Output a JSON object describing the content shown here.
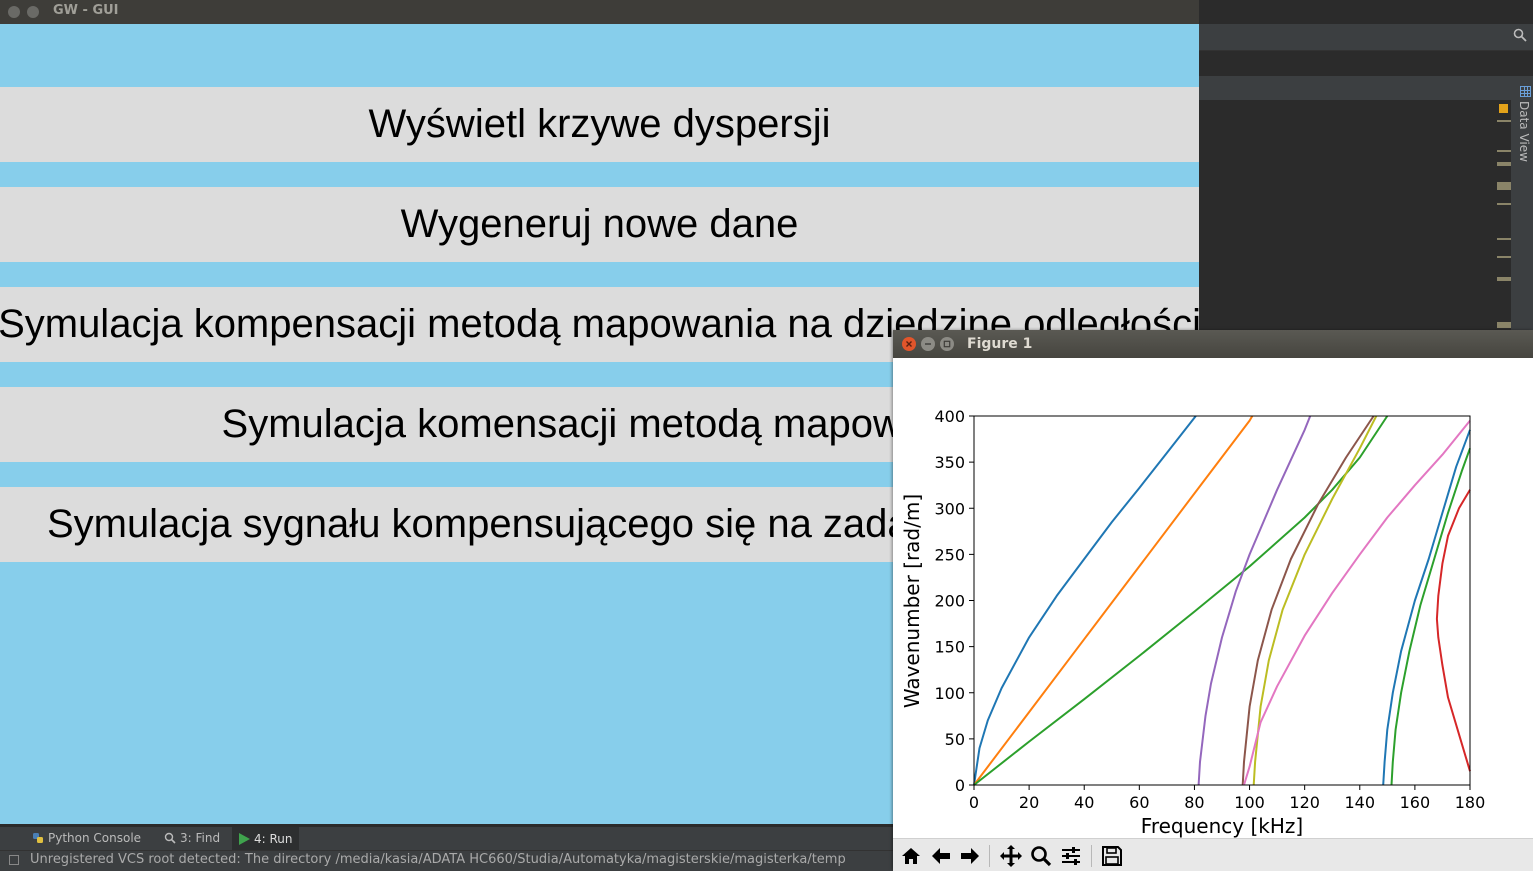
{
  "gw_window": {
    "title": "GW - GUI",
    "buttons": [
      {
        "label": "Wyświetl krzywe dyspersji"
      },
      {
        "label": "Wygeneruj nowe dane"
      },
      {
        "label": "Symulacja kompensacji metodą mapowania na dziedzinę odległości"
      },
      {
        "label": "Symulacja komensacji metodą mapowania"
      },
      {
        "label": "Symulacja sygnału kompensującego się na zadanej odległości"
      }
    ],
    "colors": {
      "background": "#87ceeb",
      "button": "#dcdcdc"
    }
  },
  "ide": {
    "right_panel_label": "Data View",
    "tool_tabs": [
      {
        "label": "Python Console",
        "icon": "python-icon"
      },
      {
        "label": "3: Find",
        "icon": "search-icon"
      },
      {
        "label": "4: Run",
        "icon": "run-icon"
      }
    ],
    "status_text": "Unregistered VCS root detected: The directory /media/kasia/ADATA HC660/Studia/Automatyka/magisterskie/magisterka/temp"
  },
  "figure_window": {
    "title": "Figure 1",
    "toolbar": [
      "home-icon",
      "back-icon",
      "forward-icon",
      "pan-icon",
      "zoom-icon",
      "configure-icon",
      "save-icon"
    ]
  },
  "chart_data": {
    "type": "line",
    "title": "",
    "xlabel": "Frequency [kHz]",
    "ylabel": "Wavenumber [rad/m]",
    "xlim": [
      0,
      180
    ],
    "ylim": [
      0,
      400
    ],
    "xticks": [
      0,
      20,
      40,
      60,
      80,
      100,
      120,
      140,
      160,
      180
    ],
    "yticks": [
      0,
      50,
      100,
      150,
      200,
      250,
      300,
      350,
      400
    ],
    "grid": false,
    "series": [
      {
        "color": "#1f77b4",
        "x": [
          0,
          2,
          5,
          10,
          20,
          30,
          40,
          50,
          60,
          70,
          80.5
        ],
        "y": [
          0,
          40,
          70,
          105,
          160,
          205,
          245,
          285,
          322,
          360,
          400
        ]
      },
      {
        "color": "#ff7f0e",
        "x": [
          0,
          20,
          40,
          60,
          80,
          100,
          101
        ],
        "y": [
          0,
          79,
          158,
          237,
          316,
          395,
          400
        ]
      },
      {
        "color": "#2ca02c",
        "x": [
          0,
          20,
          40,
          60,
          80,
          100,
          120,
          130,
          140,
          150
        ],
        "y": [
          0,
          47,
          93,
          140,
          188,
          237,
          290,
          320,
          355,
          400
        ]
      },
      {
        "color": "#9467bd",
        "x": [
          81.5,
          82,
          84,
          86,
          90,
          95,
          100,
          110,
          120,
          122
        ],
        "y": [
          0,
          25,
          75,
          110,
          160,
          210,
          250,
          320,
          385,
          400
        ]
      },
      {
        "color": "#8c564b",
        "x": [
          97.5,
          98,
          100,
          103,
          108,
          115,
          125,
          135,
          145
        ],
        "y": [
          0,
          25,
          85,
          135,
          190,
          245,
          305,
          355,
          400
        ]
      },
      {
        "color": "#bcbd22",
        "x": [
          101.5,
          102,
          104,
          107,
          112,
          120,
          130,
          140,
          146
        ],
        "y": [
          0,
          25,
          85,
          135,
          190,
          250,
          310,
          365,
          400
        ]
      },
      {
        "color": "#e377c2",
        "x": [
          98,
          100,
          104,
          110,
          120,
          130,
          140,
          150,
          160,
          170,
          180
        ],
        "y": [
          0,
          20,
          68,
          107,
          162,
          208,
          250,
          290,
          325,
          358,
          395
        ]
      },
      {
        "color": "#1f77b4",
        "x": [
          148.5,
          149,
          150,
          152,
          155,
          160,
          165,
          170,
          175,
          180
        ],
        "y": [
          0,
          25,
          60,
          100,
          145,
          200,
          245,
          295,
          345,
          385
        ]
      },
      {
        "color": "#2ca02c",
        "x": [
          151.5,
          152,
          153,
          155,
          158,
          162,
          167,
          172,
          177,
          180
        ],
        "y": [
          0,
          25,
          60,
          100,
          145,
          195,
          245,
          295,
          340,
          365
        ]
      },
      {
        "color": "#d62728",
        "x": [
          180,
          176,
          172,
          170,
          168.5,
          168,
          168.5,
          170,
          172,
          176,
          180
        ],
        "y": [
          15,
          55,
          95,
          130,
          160,
          180,
          205,
          240,
          270,
          300,
          320
        ]
      }
    ]
  }
}
